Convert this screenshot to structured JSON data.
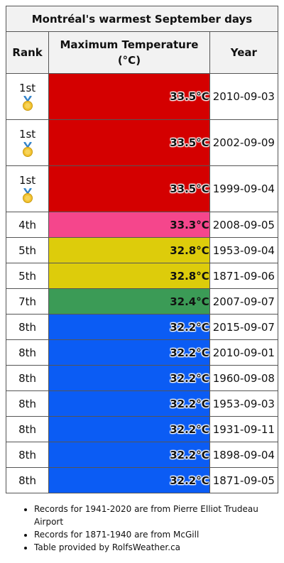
{
  "table": {
    "title": "Montréal's warmest September days",
    "headers": {
      "rank": "Rank",
      "temp": "Maximum Temperature (°C)",
      "year": "Year"
    },
    "rows": [
      {
        "rank": "1st",
        "temp": "33.5°C",
        "date": "2010-09-03",
        "color": "#d40000",
        "medal": true
      },
      {
        "rank": "1st",
        "temp": "33.5°C",
        "date": "2002-09-09",
        "color": "#d40000",
        "medal": true
      },
      {
        "rank": "1st",
        "temp": "33.5°C",
        "date": "1999-09-04",
        "color": "#d40000",
        "medal": true
      },
      {
        "rank": "4th",
        "temp": "33.3°C",
        "date": "2008-09-05",
        "color": "#f5468c",
        "medal": false
      },
      {
        "rank": "5th",
        "temp": "32.8°C",
        "date": "1953-09-04",
        "color": "#ddcc0b",
        "medal": false
      },
      {
        "rank": "5th",
        "temp": "32.8°C",
        "date": "1871-09-06",
        "color": "#ddcc0b",
        "medal": false
      },
      {
        "rank": "7th",
        "temp": "32.4°C",
        "date": "2007-09-07",
        "color": "#3b9b56",
        "medal": false
      },
      {
        "rank": "8th",
        "temp": "32.2°C",
        "date": "2015-09-07",
        "color": "#0b5cf4",
        "medal": false
      },
      {
        "rank": "8th",
        "temp": "32.2°C",
        "date": "2010-09-01",
        "color": "#0b5cf4",
        "medal": false
      },
      {
        "rank": "8th",
        "temp": "32.2°C",
        "date": "1960-09-08",
        "color": "#0b5cf4",
        "medal": false
      },
      {
        "rank": "8th",
        "temp": "32.2°C",
        "date": "1953-09-03",
        "color": "#0b5cf4",
        "medal": false
      },
      {
        "rank": "8th",
        "temp": "32.2°C",
        "date": "1931-09-11",
        "color": "#0b5cf4",
        "medal": false
      },
      {
        "rank": "8th",
        "temp": "32.2°C",
        "date": "1898-09-04",
        "color": "#0b5cf4",
        "medal": false
      },
      {
        "rank": "8th",
        "temp": "32.2°C",
        "date": "1871-09-05",
        "color": "#0b5cf4",
        "medal": false
      }
    ]
  },
  "notes": [
    "Records for 1941-2020 are from Pierre Elliot Trudeau Airport",
    "Records for 1871-1940 are from McGill",
    "Table provided by RolfsWeather.ca"
  ],
  "icons": {
    "medal": "gold-medal-icon"
  }
}
